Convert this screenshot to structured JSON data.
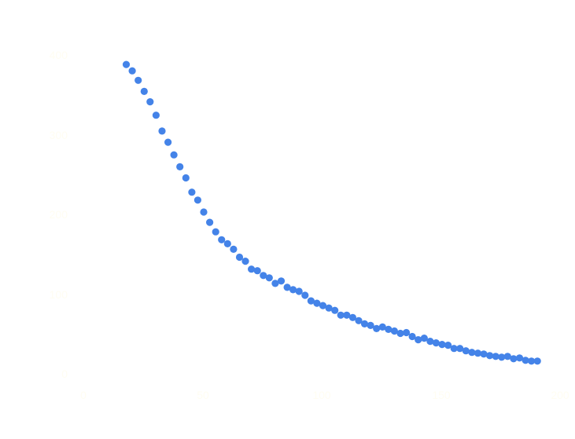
{
  "chart_data": {
    "type": "scatter",
    "title": "",
    "xlabel": "",
    "ylabel": "",
    "xlim": [
      0,
      200
    ],
    "ylim": [
      0,
      400
    ],
    "x_ticks": [
      "0",
      "50",
      "100",
      "150",
      "200"
    ],
    "y_ticks": [
      "0",
      "100",
      "200",
      "300",
      "400"
    ],
    "grid": false,
    "legend": "none",
    "colors": {
      "points": "#4483e8",
      "text": "#fffdf2",
      "background": "#ffffff"
    },
    "series": [
      {
        "x": [
          18,
          20.5,
          23,
          25.5,
          28,
          30.5,
          33,
          35.5,
          38,
          40.5,
          43,
          45.5,
          48,
          50.5,
          53,
          55.5,
          58,
          60.5,
          63,
          65.5,
          68,
          70.5,
          73,
          75.5,
          78,
          80.5,
          83,
          85.5,
          88,
          90.5,
          93,
          95.5,
          98,
          100.5,
          103,
          105.5,
          108,
          110.5,
          113,
          115.5,
          118,
          120.5,
          123,
          125.5,
          128,
          130.5,
          133,
          135.5,
          138,
          140.5,
          143,
          145.5,
          148,
          150.5,
          153,
          155.5,
          158,
          160.5,
          163,
          165.5,
          168,
          170.5,
          173,
          175.5,
          178,
          180.5,
          183,
          185.5,
          188,
          190.5
        ],
        "y": [
          390,
          382,
          370,
          356,
          343,
          326,
          306,
          292,
          276,
          261,
          247,
          229,
          219,
          204,
          191,
          179,
          169,
          164,
          157,
          147,
          142,
          132,
          130,
          124,
          121,
          114,
          117,
          109,
          106,
          104,
          99,
          92,
          89,
          86,
          83,
          80,
          74,
          74,
          71,
          67,
          63,
          61,
          57,
          59,
          56,
          54,
          51,
          52,
          47,
          43,
          45,
          41,
          39,
          37,
          36,
          32,
          32,
          29,
          27,
          26,
          25,
          23,
          22,
          21,
          22,
          19,
          20,
          17,
          16,
          16
        ]
      }
    ]
  }
}
